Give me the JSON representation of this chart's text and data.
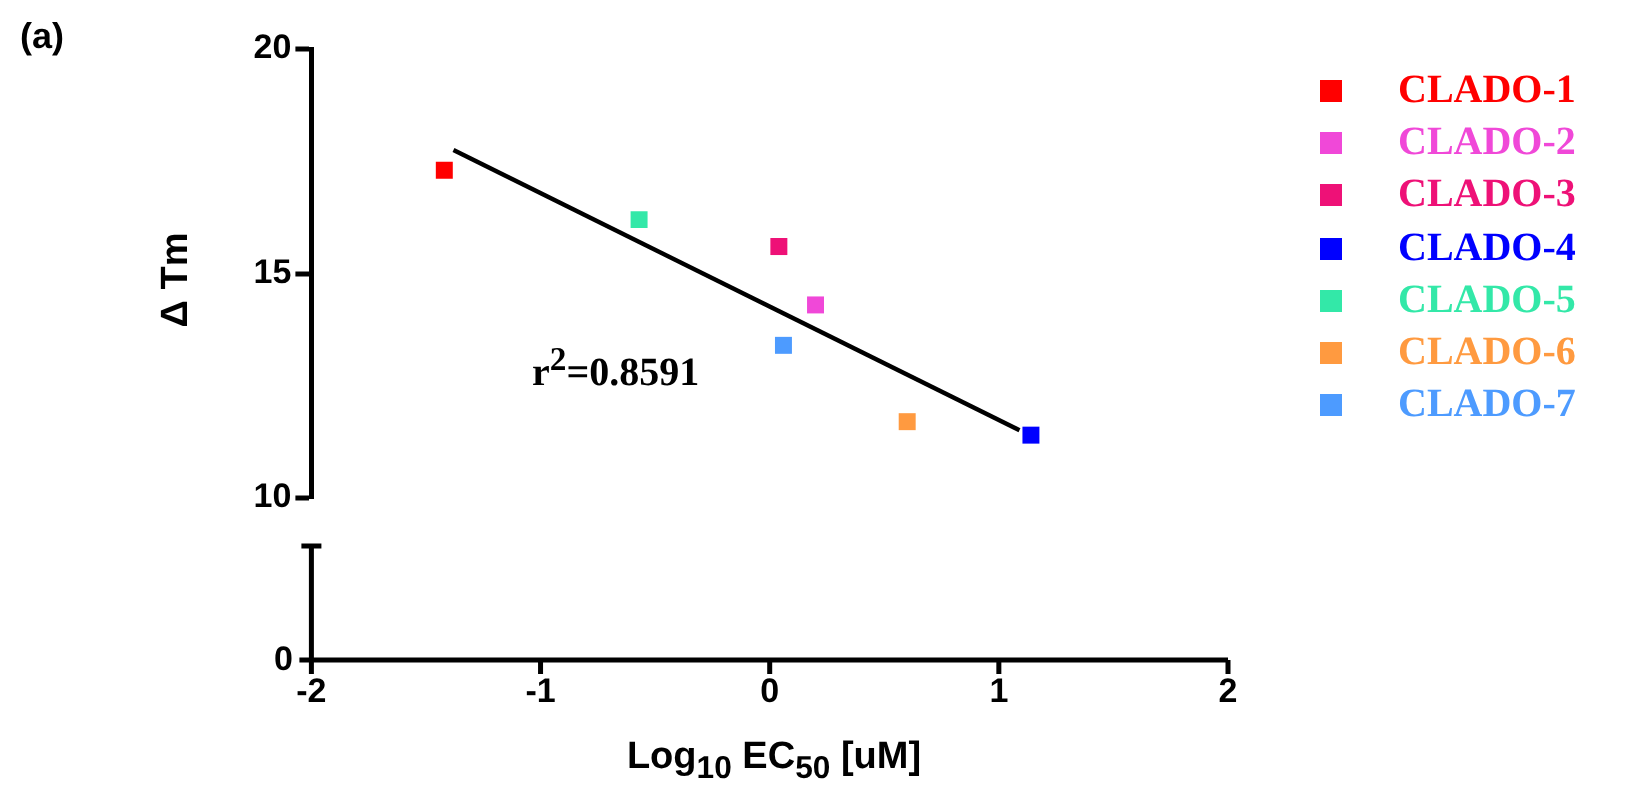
{
  "chart_data": {
    "type": "scatter",
    "xlabel": "Log$_{10}$ EC$_{50}$ [uM]",
    "ylabel": "Δ Tm",
    "annotations": [
      "(a)",
      "r$^{2}$=0.8591",
      "0"
    ],
    "marker": "square",
    "legend": "right",
    "xlim": [
      -2,
      2
    ],
    "xticks": [
      -2,
      -1,
      0,
      1,
      2
    ],
    "ylim": [
      10,
      20
    ],
    "yticks": [
      10,
      15,
      20
    ],
    "series": [
      {
        "name": "CLADO-1",
        "color": "#ff0000",
        "x": [
          -1.42
        ],
        "values": [
          17.3
        ]
      },
      {
        "name": "CLADO-2",
        "color": "#f048d8",
        "x": [
          0.2
        ],
        "values": [
          14.3
        ]
      },
      {
        "name": "CLADO-3",
        "color": "#ee1177",
        "x": [
          0.04
        ],
        "values": [
          15.6
        ]
      },
      {
        "name": "CLADO-4",
        "color": "#0000ff",
        "x": [
          1.14
        ],
        "values": [
          11.4
        ]
      },
      {
        "name": "CLADO-5",
        "color": "#33e8a8",
        "x": [
          -0.57
        ],
        "values": [
          16.2
        ]
      },
      {
        "name": "CLADO-6",
        "color": "#ff9a40",
        "x": [
          0.6
        ],
        "values": [
          11.7
        ]
      },
      {
        "name": "CLADO-7",
        "color": "#4d9bff",
        "x": [
          0.06
        ],
        "values": [
          13.4
        ]
      },
      {
        "type": "line",
        "marker": "none",
        "color": "#000000",
        "x": [
          -1.38,
          1.09
        ],
        "values": [
          17.75,
          11.51
        ]
      }
    ]
  }
}
